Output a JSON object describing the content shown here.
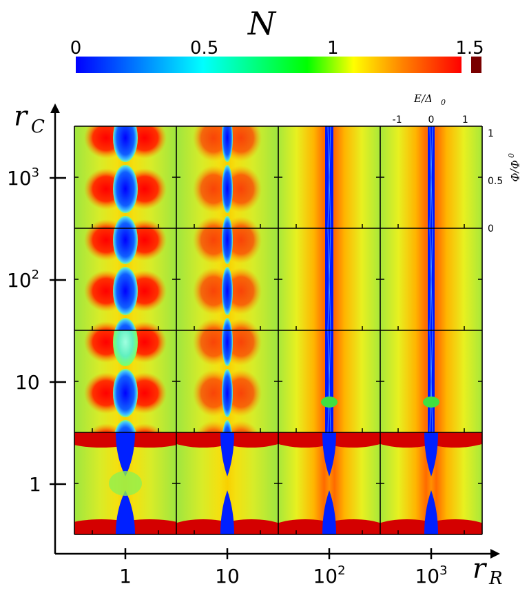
{
  "chart_data": {
    "type": "heatmap",
    "title": "N",
    "colorbar": {
      "label": "N",
      "ticks": [
        "0",
        "0.5",
        "1",
        "1.5"
      ],
      "range": [
        0,
        1.5
      ],
      "overflow_value": "> 1.5",
      "colors": [
        "#0000ff",
        "#00ffff",
        "#00ff00",
        "#ffff00",
        "#ff8000",
        "#ff0000"
      ],
      "overflow_color": "#7a0000"
    },
    "xlabel_main": "r",
    "xlabel_sub": "R",
    "ylabel_main": "r",
    "ylabel_sub": "C",
    "x_ticks": [
      {
        "base": "1",
        "exp": ""
      },
      {
        "base": "10",
        "exp": ""
      },
      {
        "base": "10",
        "exp": "2"
      },
      {
        "base": "10",
        "exp": "3"
      }
    ],
    "y_ticks": [
      {
        "base": "10",
        "exp": "3"
      },
      {
        "base": "10",
        "exp": "2"
      },
      {
        "base": "10",
        "exp": ""
      },
      {
        "base": "1",
        "exp": ""
      }
    ],
    "x_values": [
      1,
      10,
      100,
      1000
    ],
    "y_values": [
      1000,
      100,
      10,
      1
    ],
    "inner_axes": {
      "energy_label": "E/Δ",
      "energy_sub": "0",
      "energy_ticks": [
        "-1",
        "0",
        "1"
      ],
      "energy_range": [
        -1.5,
        1.5
      ],
      "flux_label": "Φ/Φ",
      "flux_sub": "0",
      "flux_ticks": [
        "1",
        "0.5",
        "0"
      ],
      "flux_range": [
        0,
        1
      ]
    }
  }
}
